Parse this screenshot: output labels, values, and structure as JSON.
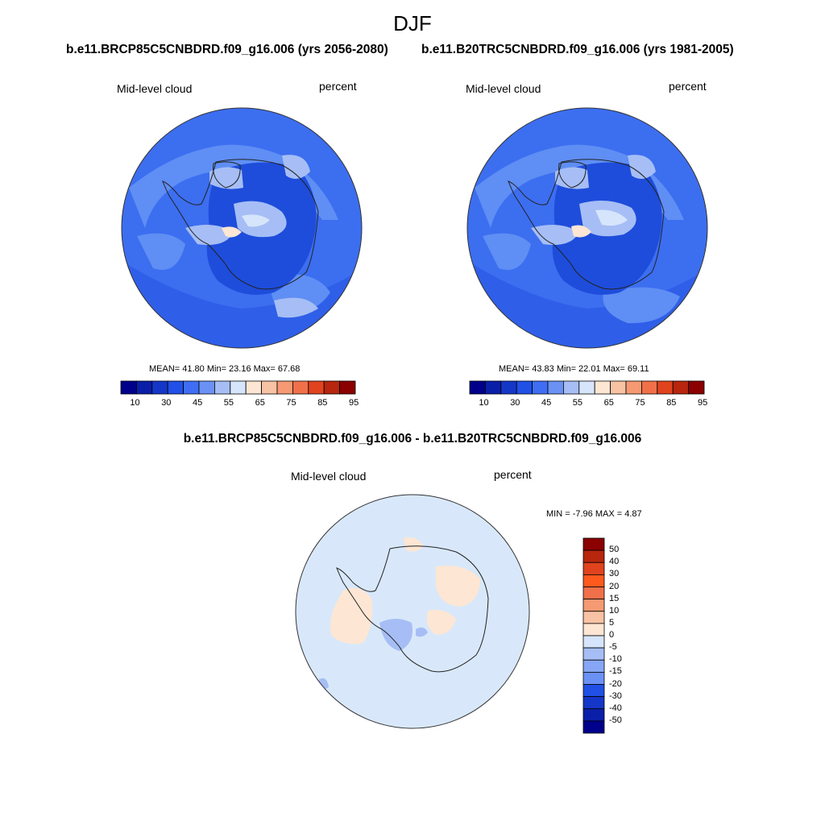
{
  "figure": {
    "season": "DJF",
    "left_title": "b.e11.BRCP85C5CNBDRD.f09_g16.006 (yrs 2056-2080)",
    "right_title": "b.e11.B20TRC5CNBDRD.f09_g16.006 (yrs 1981-2005)",
    "diff_title": "b.e11.BRCP85C5CNBDRD.f09_g16.006 - b.e11.B20TRC5CNBDRD.f09_g16.006"
  },
  "panels": {
    "future": {
      "variable": "Mid-level cloud",
      "units": "percent",
      "mean": "41.80",
      "min": "23.16",
      "max": "67.68",
      "stats_text": "MEAN=  41.80  Min=  23.16  Max=  67.68"
    },
    "historical": {
      "variable": "Mid-level cloud",
      "units": "percent",
      "mean": "43.83",
      "min": "22.01",
      "max": "69.11",
      "stats_text": "MEAN=  43.83  Min=  22.01  Max=  69.11"
    },
    "difference": {
      "variable": "Mid-level cloud",
      "units": "percent",
      "min": "-7.96",
      "max": "4.87",
      "stats_text": "MIN =  -7.96 MAX =   4.87"
    }
  },
  "colorbars": {
    "absolute": {
      "tick_labels": [
        "10",
        "30",
        "45",
        "55",
        "65",
        "75",
        "85",
        "95"
      ],
      "colors": [
        "#00008b",
        "#0a1fa8",
        "#1537c8",
        "#2050e6",
        "#3f6ef5",
        "#6b91f5",
        "#a6bef5",
        "#d6e5fb",
        "#fde6d3",
        "#f8c2a4",
        "#f59a72",
        "#f0704a",
        "#e0431e",
        "#b8260d",
        "#8b0000"
      ]
    },
    "difference": {
      "tick_labels": [
        "50",
        "40",
        "30",
        "20",
        "15",
        "10",
        "5",
        "0",
        "-5",
        "-10",
        "-15",
        "-20",
        "-30",
        "-40",
        "-50"
      ],
      "colors": [
        "#8b0000",
        "#b8260d",
        "#e0431e",
        "#fe5a1e",
        "#f0704a",
        "#f59a72",
        "#f8c2a4",
        "#fde6d3",
        "#d6e5fb",
        "#a6bef5",
        "#86a6f5",
        "#6b91f5",
        "#2050e6",
        "#1537c8",
        "#0a1fa8",
        "#00008b"
      ]
    }
  },
  "map_colors": {
    "ocean_blue": "#3c6ef0",
    "dark_blue": "#1e4ddb",
    "mid_blue": "#5f8ef4",
    "light_blue": "#a6bef5",
    "pale_blue": "#d6e5fb",
    "pale_orange": "#fde6d3",
    "diff_background": "#d8e8fa"
  }
}
